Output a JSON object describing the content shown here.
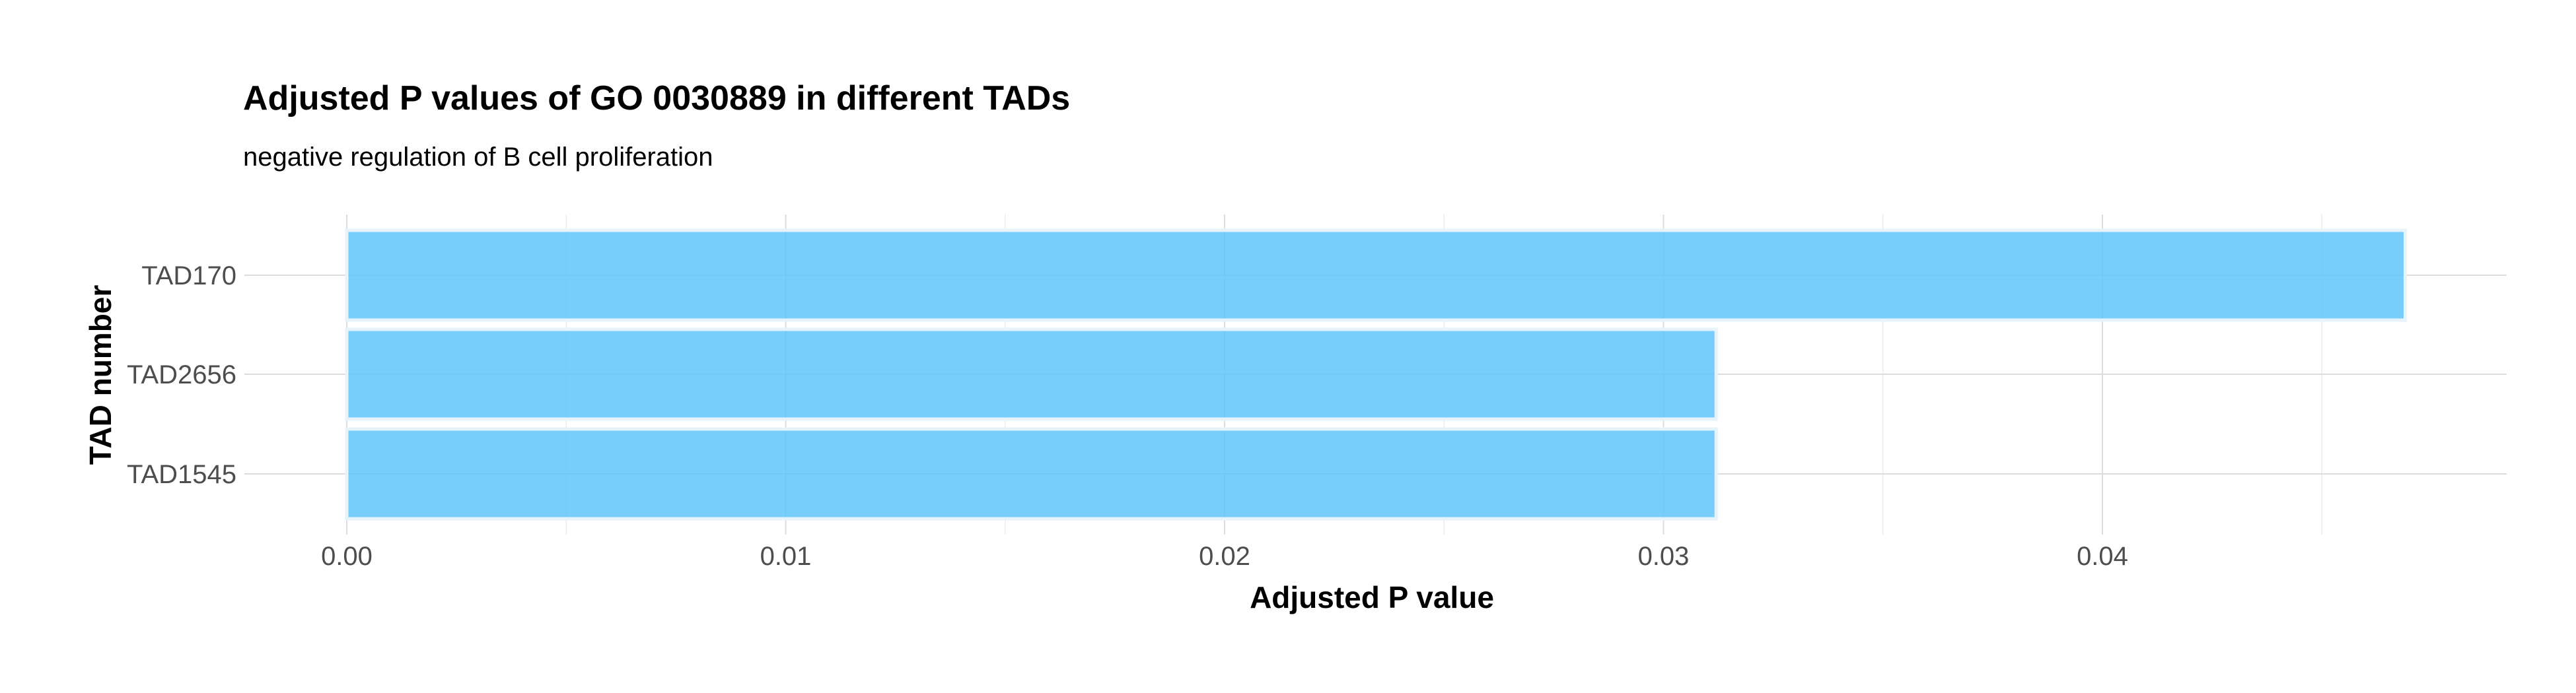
{
  "chart_data": {
    "type": "bar",
    "orientation": "horizontal",
    "title": "Adjusted P values of GO 0030889 in different TADs",
    "subtitle": "negative regulation of B cell proliferation",
    "xlabel": "Adjusted P value",
    "ylabel": "TAD number",
    "categories": [
      "TAD170",
      "TAD2656",
      "TAD1545"
    ],
    "values": [
      0.0469,
      0.0312,
      0.0312
    ],
    "xlim": [
      0,
      0.0492
    ],
    "xticks": [
      0.0,
      0.01,
      0.02,
      0.03,
      0.04
    ],
    "xtick_labels": [
      "0.00",
      "0.01",
      "0.02",
      "0.03",
      "0.04"
    ],
    "grid": true,
    "legend": "none",
    "bar_color": "#5fc6fa"
  }
}
